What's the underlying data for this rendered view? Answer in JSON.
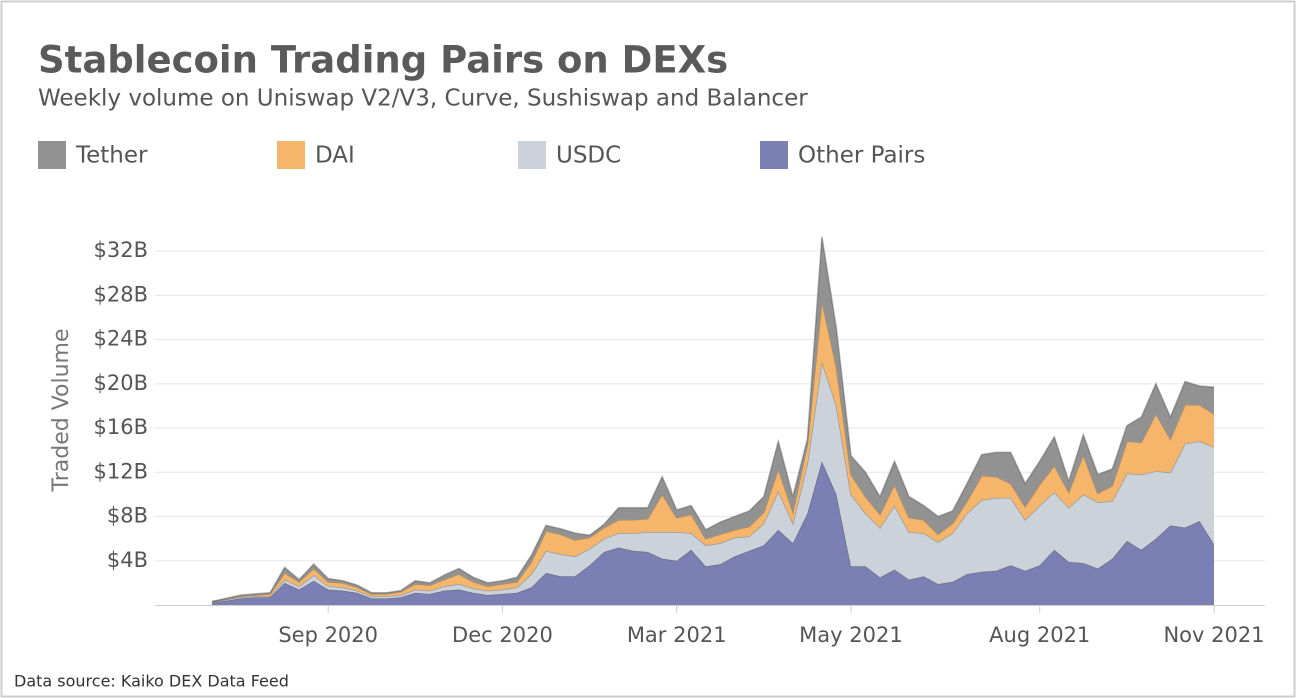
{
  "chart_data": {
    "type": "area",
    "title": "Stablecoin Trading Pairs on DEXs",
    "subtitle": "Weekly volume on Uniswap V2/V3, Curve, Sushiswap and Balancer",
    "y_label": "Traded Volume",
    "source": "Data source: Kaiko DEX Data Feed",
    "stacked": true,
    "grid": true,
    "categories": [
      null,
      null,
      null,
      null,
      null,
      null,
      null,
      null,
      "Sep 2020",
      null,
      null,
      null,
      null,
      null,
      null,
      null,
      null,
      null,
      null,
      null,
      "Dec 2020",
      null,
      null,
      null,
      null,
      null,
      null,
      null,
      null,
      null,
      null,
      null,
      "Mar 2021",
      null,
      null,
      null,
      null,
      null,
      null,
      null,
      null,
      null,
      null,
      null,
      "May 2021",
      null,
      null,
      null,
      null,
      null,
      null,
      null,
      null,
      null,
      null,
      null,
      null,
      "Aug 2021",
      null,
      null,
      null,
      null,
      null,
      null,
      null,
      null,
      null,
      null,
      null,
      "Nov 2021"
    ],
    "series": [
      {
        "name": "Tether",
        "color": "#929292",
        "values": [
          0.02,
          0.05,
          0.1,
          0.1,
          0.1,
          0.5,
          0.2,
          0.4,
          0.3,
          0.2,
          0.2,
          0.1,
          0.1,
          0.1,
          0.3,
          0.2,
          0.4,
          0.5,
          0.4,
          0.3,
          0.3,
          0.4,
          0.6,
          0.5,
          0.5,
          0.6,
          0.2,
          0.3,
          1.1,
          1.1,
          1.0,
          1.6,
          0.7,
          0.8,
          0.8,
          1.1,
          1.2,
          1.4,
          1.4,
          2.5,
          1.4,
          0.5,
          5.8,
          3.5,
          1.7,
          2.2,
          1.6,
          2.1,
          1.9,
          1.3,
          1.6,
          1.1,
          1.6,
          1.9,
          2.2,
          2.8,
          2.1,
          2.1,
          2.6,
          1.0,
          1.8,
          1.7,
          1.5,
          1.4,
          2.3,
          2.7,
          2.0,
          2.1,
          1.7,
          2.4
        ]
      },
      {
        "name": "DAI",
        "color": "#f5b56b",
        "values": [
          0.05,
          0.05,
          0.1,
          0.1,
          0.2,
          0.6,
          0.4,
          0.6,
          0.4,
          0.4,
          0.3,
          0.2,
          0.2,
          0.3,
          0.5,
          0.5,
          0.6,
          0.9,
          0.6,
          0.4,
          0.5,
          0.5,
          1.1,
          1.8,
          1.8,
          1.5,
          1.0,
          1.0,
          1.2,
          1.2,
          1.2,
          3.4,
          1.3,
          1.7,
          0.6,
          0.8,
          0.7,
          0.9,
          1.0,
          2.0,
          1.0,
          1.7,
          5.5,
          3.5,
          1.8,
          1.5,
          1.2,
          1.9,
          1.3,
          1.2,
          0.7,
          0.9,
          1.1,
          2.2,
          1.9,
          1.3,
          1.2,
          1.9,
          2.4,
          1.4,
          3.6,
          0.8,
          1.4,
          2.9,
          2.9,
          5.2,
          3.0,
          3.5,
          3.3,
          3.0
        ]
      },
      {
        "name": "USDC",
        "color": "#ccd2d9",
        "values": [
          0.05,
          0.1,
          0.1,
          0.1,
          0.1,
          0.3,
          0.3,
          0.5,
          0.3,
          0.3,
          0.2,
          0.2,
          0.2,
          0.2,
          0.3,
          0.3,
          0.4,
          0.5,
          0.4,
          0.4,
          0.4,
          0.5,
          1.2,
          2.0,
          2.0,
          1.8,
          1.5,
          1.2,
          1.3,
          1.6,
          1.8,
          2.4,
          2.6,
          1.5,
          1.9,
          1.9,
          1.7,
          1.3,
          2.0,
          3.5,
          1.8,
          4.5,
          9.0,
          8.0,
          6.5,
          4.8,
          4.5,
          5.8,
          4.3,
          3.9,
          3.8,
          4.4,
          5.5,
          6.5,
          6.6,
          6.1,
          4.6,
          5.4,
          5.2,
          4.9,
          6.2,
          6.0,
          5.2,
          6.1,
          6.8,
          6.1,
          4.8,
          7.6,
          7.2,
          8.8
        ]
      },
      {
        "name": "Other Pairs",
        "color": "#7b80b4",
        "values": [
          0.2,
          0.4,
          0.6,
          0.7,
          0.7,
          2.0,
          1.4,
          2.2,
          1.4,
          1.3,
          1.1,
          0.6,
          0.6,
          0.7,
          1.1,
          1.0,
          1.3,
          1.4,
          1.1,
          0.9,
          1.0,
          1.1,
          1.6,
          2.9,
          2.6,
          2.6,
          3.6,
          4.8,
          5.2,
          4.9,
          4.8,
          4.2,
          4.0,
          5.0,
          3.5,
          3.7,
          4.4,
          4.9,
          5.4,
          6.8,
          5.6,
          8.3,
          13.0,
          10.0,
          3.5,
          3.5,
          2.5,
          3.2,
          2.3,
          2.6,
          1.9,
          2.1,
          2.8,
          3.0,
          3.1,
          3.6,
          3.1,
          3.6,
          5.0,
          3.9,
          3.8,
          3.3,
          4.2,
          5.8,
          5.0,
          6.0,
          7.2,
          7.0,
          7.6,
          5.5
        ]
      }
    ],
    "ylim": [
      0,
      34
    ],
    "yticks": [
      {
        "value": 4,
        "label": "$4B"
      },
      {
        "value": 8,
        "label": "$8B"
      },
      {
        "value": 12,
        "label": "$12B"
      },
      {
        "value": 16,
        "label": "$16B"
      },
      {
        "value": 20,
        "label": "$20B"
      },
      {
        "value": 24,
        "label": "$24B"
      },
      {
        "value": 28,
        "label": "$28B"
      },
      {
        "value": 32,
        "label": "$32B"
      }
    ]
  }
}
